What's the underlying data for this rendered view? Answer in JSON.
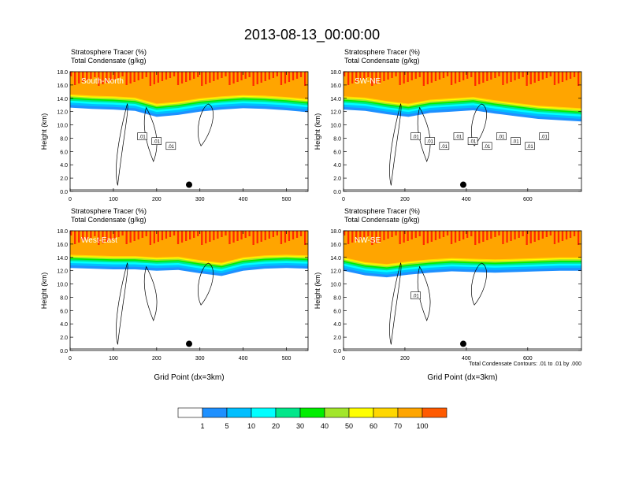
{
  "figure": {
    "title": "2013-08-13_00:00:00",
    "contour_note": "Total Condensate Contours: .01 to .01 by .000"
  },
  "colorbar": {
    "labels": [
      "1",
      "5",
      "10",
      "20",
      "30",
      "40",
      "50",
      "60",
      "70",
      "100"
    ],
    "colors": [
      "#ffffff",
      "#1e90ff",
      "#00bfff",
      "#00ffff",
      "#00e78a",
      "#00ee00",
      "#a2e62b",
      "#ffff00",
      "#ffd700",
      "#ffa500",
      "#ff5a00",
      "#ff0000"
    ]
  },
  "chart_data": [
    {
      "type": "heatmap",
      "panel_label": "South-North",
      "header_line1": "Stratosphere Tracer   (%)",
      "header_line2": "Total Condensate   (g/kg)",
      "ylabel": "Height (km)",
      "xlabel": "",
      "xlim": [
        0,
        550
      ],
      "ylim": [
        0,
        18
      ],
      "xticks": [
        "0",
        "100",
        "200",
        "300",
        "400",
        "500"
      ],
      "yticks": [
        "0.0",
        "2.0",
        "4.0",
        "6.0",
        "8.0",
        "10.0",
        "12.0",
        "14.0",
        "16.0",
        "18.0"
      ],
      "tracer_top_km": [
        14.6,
        14.4,
        14.3,
        14.1,
        13.2,
        13.5,
        14.0,
        14.3,
        14.5,
        14.4,
        14.2,
        13.9
      ],
      "contour_labels": [
        ".01",
        ".01",
        ".01"
      ],
      "marker": {
        "x": 275,
        "y": 1.0
      }
    },
    {
      "type": "heatmap",
      "panel_label": "SW-NE",
      "header_line1": "Stratosphere Tracer   (%)",
      "header_line2": "Total Condensate   (g/kg)",
      "ylabel": "Height (km)",
      "xlabel": "",
      "xlim": [
        0,
        775
      ],
      "ylim": [
        0,
        18
      ],
      "xticks": [
        "0",
        "200",
        "400",
        "600"
      ],
      "yticks": [
        "0.0",
        "2.0",
        "4.0",
        "6.0",
        "8.0",
        "10.0",
        "12.0",
        "14.0",
        "16.0",
        "18.0"
      ],
      "tracer_top_km": [
        14.3,
        14.1,
        13.6,
        13.2,
        13.8,
        14.0,
        14.2,
        13.7,
        13.3,
        12.9,
        12.7,
        12.5
      ],
      "contour_labels": [
        ".01",
        ".01",
        ".01",
        ".01",
        ".01",
        ".01",
        ".01",
        ".01",
        ".01",
        ".01"
      ],
      "marker": {
        "x": 390,
        "y": 1.0
      }
    },
    {
      "type": "heatmap",
      "panel_label": "West-East",
      "header_line1": "Stratosphere Tracer   (%)",
      "header_line2": "Total Condensate   (g/kg)",
      "ylabel": "Height (km)",
      "xlabel": "Grid Point (dx=3km)",
      "xlim": [
        0,
        550
      ],
      "ylim": [
        0,
        18
      ],
      "xticks": [
        "0",
        "100",
        "200",
        "300",
        "400",
        "500"
      ],
      "yticks": [
        "0.0",
        "2.0",
        "4.0",
        "6.0",
        "8.0",
        "10.0",
        "12.0",
        "14.0",
        "16.0",
        "18.0"
      ],
      "tracer_top_km": [
        14.4,
        14.3,
        14.2,
        14.2,
        14.0,
        14.1,
        13.6,
        13.2,
        14.0,
        14.3,
        14.4,
        14.3
      ],
      "contour_labels": [],
      "marker": {
        "x": 275,
        "y": 1.0
      }
    },
    {
      "type": "heatmap",
      "panel_label": "NW-SE",
      "header_line1": "Stratosphere Tracer   (%)",
      "header_line2": "Total Condensate   (g/kg)",
      "ylabel": "Height (km)",
      "xlabel": "Grid Point (dx=3km)",
      "xlim": [
        0,
        775
      ],
      "ylim": [
        0,
        18
      ],
      "xticks": [
        "0",
        "200",
        "400",
        "600"
      ],
      "yticks": [
        "0.0",
        "2.0",
        "4.0",
        "6.0",
        "8.0",
        "10.0",
        "12.0",
        "14.0",
        "16.0",
        "18.0"
      ],
      "tracer_top_km": [
        14.0,
        13.3,
        13.0,
        13.4,
        13.7,
        13.9,
        13.8,
        13.7,
        13.8,
        13.9,
        14.0,
        14.0
      ],
      "contour_labels": [
        ".01"
      ],
      "marker": {
        "x": 390,
        "y": 1.0
      }
    }
  ]
}
